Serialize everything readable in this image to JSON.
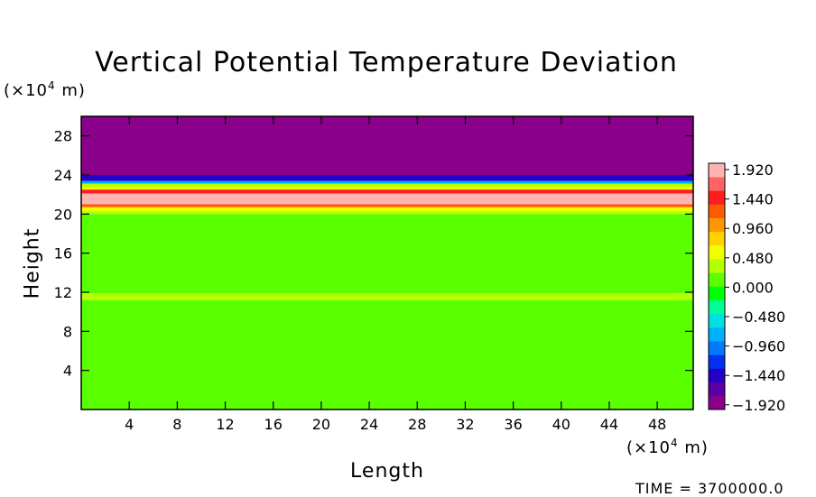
{
  "chart_data": {
    "type": "heatmap",
    "title": "Vertical Potential Temperature Deviation",
    "xlabel": "Length",
    "ylabel": "Height",
    "x_unit_prefix": "(×10",
    "x_unit_exp": "4",
    "x_unit_suffix": " m)",
    "y_unit_prefix": "(×10",
    "y_unit_exp": "4",
    "y_unit_suffix": " m)",
    "xlim": [
      0,
      51
    ],
    "ylim": [
      0,
      30
    ],
    "x_ticks": [
      4,
      8,
      12,
      16,
      20,
      24,
      28,
      32,
      36,
      40,
      44,
      48
    ],
    "y_ticks": [
      4,
      8,
      12,
      16,
      20,
      24,
      28
    ],
    "colorbar": {
      "labels": [
        "1.920",
        "1.440",
        "0.960",
        "0.480",
        "0.000",
        "−0.480",
        "−0.960",
        "−1.440",
        "−1.920"
      ],
      "vmin": -2.16,
      "vmax": 2.16,
      "colors": [
        "#8b008b",
        "#5a00a5",
        "#2600c8",
        "#0030f0",
        "#0078ff",
        "#00b0ff",
        "#00e0e0",
        "#00ff96",
        "#00ff00",
        "#5aff00",
        "#b4ff00",
        "#f0ff00",
        "#ffd200",
        "#ff9600",
        "#ff5a00",
        "#ff1e1e",
        "#ff6464",
        "#ffb4b4"
      ]
    },
    "bands": [
      {
        "y": [
          24.0,
          30.0
        ],
        "value": -2.16
      },
      {
        "y": [
          23.4,
          24.0
        ],
        "value": -1.5
      },
      {
        "y": [
          23.1,
          23.4
        ],
        "value": -0.8
      },
      {
        "y": [
          22.8,
          23.1
        ],
        "value": 0.3
      },
      {
        "y": [
          22.5,
          22.8
        ],
        "value": 0.7
      },
      {
        "y": [
          22.1,
          22.5
        ],
        "value": 1.5
      },
      {
        "y": [
          21.0,
          22.1
        ],
        "value": 2.0
      },
      {
        "y": [
          20.7,
          21.0
        ],
        "value": 1.4
      },
      {
        "y": [
          20.3,
          20.7
        ],
        "value": 0.6
      },
      {
        "y": [
          20.0,
          20.3
        ],
        "value": 0.25
      },
      {
        "y": [
          11.9,
          20.0
        ],
        "value": 0.0
      },
      {
        "y": [
          11.5,
          11.9
        ],
        "value": 0.25
      },
      {
        "y": [
          11.2,
          11.5
        ],
        "value": 0.45
      },
      {
        "y": [
          0.0,
          11.2
        ],
        "value": 0.0
      }
    ],
    "grid": false,
    "legend": "right colorbar"
  },
  "footer": {
    "time_label": "TIME = 3700000.0"
  }
}
